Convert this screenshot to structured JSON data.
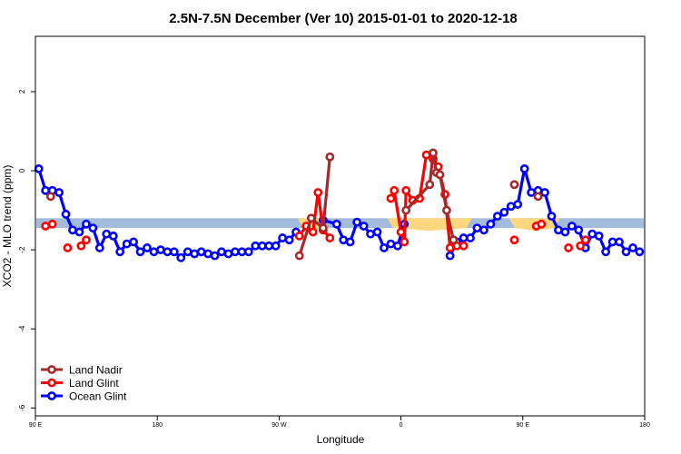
{
  "chart_data": {
    "type": "line",
    "title": "2.5N-7.5N December (Ver 10)   2015-01-01 to 2020-12-18",
    "xlabel": "Longitude",
    "ylabel": "XCO2 - MLO trend (ppm)",
    "xlim": [
      0,
      360
    ],
    "ylim": [
      -6.2,
      3.4
    ],
    "x_ticks": [
      {
        "value": 0,
        "label": "90 E"
      },
      {
        "value": 72,
        "label": "180"
      },
      {
        "value": 144,
        "label": "90 W"
      },
      {
        "value": 216,
        "label": "0"
      },
      {
        "value": 288,
        "label": "90 E"
      },
      {
        "value": 360,
        "label": "180"
      }
    ],
    "y_ticks": [
      {
        "value": 2,
        "label": "2"
      },
      {
        "value": 0,
        "label": "0"
      },
      {
        "value": -2,
        "label": "-2"
      },
      {
        "value": -4,
        "label": "-4"
      },
      {
        "value": -6,
        "label": "-6"
      }
    ],
    "colors": {
      "land_nadir": "#a52a2a",
      "land_glint": "#ff0000",
      "ocean_glint": "#0000ff",
      "band": "#a4bcdc",
      "band_highlight": "#fdd77f"
    },
    "reference_band": {
      "y_low": -1.45,
      "y_high": -1.2
    },
    "band_highlights": [
      {
        "x_start": 155,
        "x_end": 172
      },
      {
        "x_start": 208,
        "x_end": 258
      },
      {
        "x_start": 280,
        "x_end": 310
      }
    ],
    "legend": {
      "position": "bottom-left",
      "entries": [
        {
          "name": "Land Nadir",
          "color": "#a52a2a"
        },
        {
          "name": "Land Glint",
          "color": "#ff0000"
        },
        {
          "name": "Ocean Glint",
          "color": "#0000ff"
        }
      ]
    },
    "series": [
      {
        "name": "Ocean Glint",
        "color": "#0000ff",
        "segments": [
          [
            [
              2,
              0.05
            ],
            [
              6,
              -0.5
            ],
            [
              10,
              -0.5
            ],
            [
              14,
              -0.55
            ],
            [
              18,
              -1.1
            ],
            [
              22,
              -1.5
            ],
            [
              26,
              -1.55
            ],
            [
              30,
              -1.35
            ],
            [
              34,
              -1.45
            ],
            [
              38,
              -1.95
            ],
            [
              42,
              -1.6
            ],
            [
              46,
              -1.65
            ],
            [
              50,
              -2.05
            ],
            [
              54,
              -1.85
            ],
            [
              58,
              -1.8
            ],
            [
              62,
              -2.05
            ],
            [
              66,
              -1.95
            ],
            [
              70,
              -2.05
            ],
            [
              74,
              -2.0
            ],
            [
              78,
              -2.05
            ],
            [
              82,
              -2.05
            ],
            [
              86,
              -2.2
            ],
            [
              90,
              -2.05
            ],
            [
              94,
              -2.1
            ],
            [
              98,
              -2.05
            ],
            [
              102,
              -2.1
            ],
            [
              106,
              -2.15
            ],
            [
              110,
              -2.05
            ],
            [
              114,
              -2.1
            ],
            [
              118,
              -2.05
            ],
            [
              122,
              -2.05
            ],
            [
              126,
              -2.05
            ],
            [
              130,
              -1.9
            ],
            [
              134,
              -1.9
            ],
            [
              138,
              -1.9
            ],
            [
              142,
              -1.9
            ],
            [
              146,
              -1.7
            ],
            [
              150,
              -1.75
            ],
            [
              154,
              -1.55
            ]
          ],
          [
            [
              170,
              -1.25
            ],
            [
              178,
              -1.35
            ],
            [
              182,
              -1.75
            ],
            [
              186,
              -1.8
            ],
            [
              190,
              -1.3
            ],
            [
              194,
              -1.4
            ],
            [
              198,
              -1.6
            ],
            [
              202,
              -1.55
            ],
            [
              206,
              -1.95
            ],
            [
              210,
              -1.85
            ],
            [
              214,
              -1.9
            ],
            [
              218,
              -1.35
            ]
          ],
          [
            [
              245,
              -2.15
            ],
            [
              249,
              -1.8
            ],
            [
              253,
              -1.7
            ],
            [
              257,
              -1.7
            ],
            [
              261,
              -1.45
            ],
            [
              265,
              -1.5
            ],
            [
              269,
              -1.35
            ],
            [
              273,
              -1.15
            ],
            [
              277,
              -1.05
            ],
            [
              281,
              -0.9
            ],
            [
              285,
              -0.85
            ],
            [
              289,
              0.05
            ],
            [
              293,
              -0.55
            ],
            [
              297,
              -0.5
            ],
            [
              301,
              -0.55
            ],
            [
              305,
              -1.15
            ],
            [
              309,
              -1.5
            ],
            [
              313,
              -1.55
            ],
            [
              317,
              -1.4
            ],
            [
              321,
              -1.5
            ],
            [
              325,
              -1.95
            ],
            [
              329,
              -1.6
            ],
            [
              333,
              -1.65
            ],
            [
              337,
              -2.05
            ],
            [
              341,
              -1.8
            ],
            [
              345,
              -1.8
            ],
            [
              349,
              -2.05
            ],
            [
              353,
              -1.95
            ],
            [
              357,
              -2.05
            ]
          ]
        ]
      },
      {
        "name": "Land Glint",
        "color": "#ff0000",
        "segments": [
          [
            [
              6,
              -1.4
            ],
            [
              10,
              -1.35
            ]
          ],
          [
            [
              19,
              -1.95
            ]
          ],
          [
            [
              27,
              -1.9
            ],
            [
              30,
              -1.75
            ]
          ],
          [
            [
              156,
              -1.65
            ],
            [
              160,
              -1.4
            ],
            [
              164,
              -1.55
            ],
            [
              167,
              -0.55
            ],
            [
              170,
              -1.5
            ],
            [
              174,
              -1.7
            ]
          ],
          [
            [
              210,
              -0.7
            ],
            [
              212,
              -0.5
            ],
            [
              216,
              -1.55
            ],
            [
              218,
              -1.8
            ],
            [
              219,
              -0.5
            ],
            [
              223,
              -0.75
            ],
            [
              227,
              -0.7
            ],
            [
              231,
              0.4
            ],
            [
              235,
              0.3
            ],
            [
              238,
              0.1
            ],
            [
              242,
              -0.6
            ],
            [
              245,
              -1.95
            ],
            [
              249,
              -1.9
            ],
            [
              253,
              -1.9
            ]
          ],
          [
            [
              283,
              -1.75
            ]
          ],
          [
            [
              296,
              -1.4
            ],
            [
              299,
              -1.35
            ]
          ],
          [
            [
              315,
              -1.95
            ]
          ],
          [
            [
              322,
              -1.9
            ],
            [
              325,
              -1.75
            ]
          ]
        ]
      },
      {
        "name": "Land Nadir",
        "color": "#a52a2a",
        "segments": [
          [
            [
              9,
              -0.65
            ]
          ],
          [
            [
              156,
              -2.15
            ],
            [
              163,
              -1.2
            ],
            [
              170,
              -1.45
            ],
            [
              174,
              0.35
            ]
          ],
          [
            [
              219,
              -1.0
            ],
            [
              233,
              -0.35
            ],
            [
              235,
              0.45
            ],
            [
              237,
              -0.05
            ],
            [
              239,
              -0.1
            ],
            [
              243,
              -1.0
            ],
            [
              247,
              -1.75
            ]
          ],
          [
            [
              283,
              -0.35
            ]
          ],
          [
            [
              297,
              -0.65
            ]
          ]
        ]
      }
    ]
  }
}
